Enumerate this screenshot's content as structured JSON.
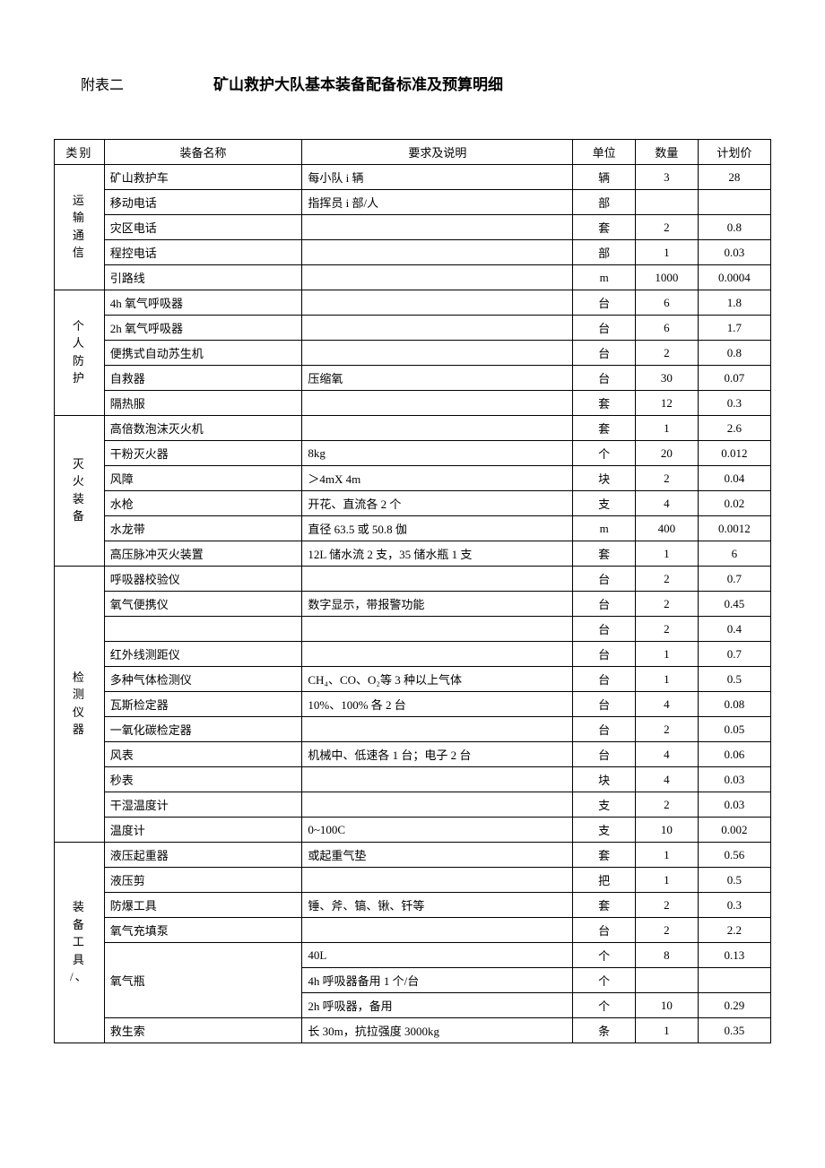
{
  "header": {
    "appendix": "附表二",
    "title": "矿山救护大队基本装备配备标准及预算明细"
  },
  "columns": {
    "category": "类别",
    "name": "装备名称",
    "desc": "要求及说明",
    "unit": "单位",
    "qty": "数量",
    "price": "计划价"
  },
  "categories": [
    {
      "label": "运 输 通 信",
      "rows": [
        {
          "name": "矿山救护车",
          "desc": "每小队 i 辆",
          "unit": "辆",
          "qty": "3",
          "price": "28"
        },
        {
          "name": "移动电话",
          "desc": "指挥员 i 部/人",
          "unit": "部",
          "qty": "",
          "price": ""
        },
        {
          "name": "灾区电话",
          "desc": "",
          "unit": "套",
          "qty": "2",
          "price": "0.8"
        },
        {
          "name": "程控电话",
          "desc": "",
          "unit": "部",
          "qty": "1",
          "price": "0.03"
        },
        {
          "name": "引路线",
          "desc": "",
          "unit": "m",
          "qty": "1000",
          "price": "0.0004"
        }
      ]
    },
    {
      "label": "个 人 防 护",
      "rows": [
        {
          "name": "4h 氧气呼吸器",
          "desc": "",
          "unit": "台",
          "qty": "6",
          "price": "1.8"
        },
        {
          "name": "2h 氧气呼吸器",
          "desc": "",
          "unit": "台",
          "qty": "6",
          "price": "1.7"
        },
        {
          "name": "便携式自动苏生机",
          "desc": "",
          "unit": "台",
          "qty": "2",
          "price": "0.8"
        },
        {
          "name": "自救器",
          "desc": "压缩氧",
          "unit": "台",
          "qty": "30",
          "price": "0.07"
        },
        {
          "name": "隔热服",
          "desc": "",
          "unit": "套",
          "qty": "12",
          "price": "0.3"
        }
      ]
    },
    {
      "label": "灭 火 装 备",
      "rows": [
        {
          "name": "高倍数泡沫灭火机",
          "desc": "",
          "unit": "套",
          "qty": "1",
          "price": "2.6"
        },
        {
          "name": "干粉灭火器",
          "desc": "8kg",
          "unit": "个",
          "qty": "20",
          "price": "0.012"
        },
        {
          "name": "风障",
          "desc": "＞4mX 4m",
          "unit": "块",
          "qty": "2",
          "price": "0.04"
        },
        {
          "name": "水枪",
          "desc": "开花、直流各 2 个",
          "unit": "支",
          "qty": "4",
          "price": "0.02"
        },
        {
          "name": "水龙带",
          "desc": "直径 63.5 或 50.8 伽",
          "unit": "m",
          "qty": "400",
          "price": "0.0012"
        },
        {
          "name": "高压脉冲灭火装置",
          "desc": "12L 储水流 2 支，35 储水瓶 1 支",
          "unit": "套",
          "qty": "1",
          "price": "6"
        }
      ]
    },
    {
      "label": "检 测 仪 器",
      "rows": [
        {
          "name": "呼吸器校验仪",
          "desc": "",
          "unit": "台",
          "qty": "2",
          "price": "0.7"
        },
        {
          "name": "氧气便携仪",
          "desc": "数字显示，带报警功能",
          "unit": "台",
          "qty": "2",
          "price": "0.45"
        },
        {
          "name": "",
          "desc": "",
          "unit": "台",
          "qty": "2",
          "price": "0.4"
        },
        {
          "name": "红外线测距仪",
          "desc": "",
          "unit": "台",
          "qty": "1",
          "price": "0.7"
        },
        {
          "name": "多种气体检测仪",
          "desc": "CH₄、CO、O₂等 3 种以上气体",
          "unit": "台",
          "qty": "1",
          "price": "0.5"
        },
        {
          "name": "瓦斯检定器",
          "desc": "10%、100% 各 2 台",
          "unit": "台",
          "qty": "4",
          "price": "0.08"
        },
        {
          "name": "一氧化碳检定器",
          "desc": "",
          "unit": "台",
          "qty": "2",
          "price": "0.05"
        },
        {
          "name": "风表",
          "desc": "机械中、低速各 1 台；电子 2 台",
          "unit": "台",
          "qty": "4",
          "price": "0.06"
        },
        {
          "name": "秒表",
          "desc": "",
          "unit": "块",
          "qty": "4",
          "price": "0.03"
        },
        {
          "name": "干湿温度计",
          "desc": "",
          "unit": "支",
          "qty": "2",
          "price": "0.03"
        },
        {
          "name": "温度计",
          "desc": "0~100C",
          "unit": "支",
          "qty": "10",
          "price": "0.002"
        }
      ]
    },
    {
      "label": "装 备 工 具 /、",
      "rows": [
        {
          "name": "液压起重器",
          "desc": "或起重气垫",
          "unit": "套",
          "qty": "1",
          "price": "0.56"
        },
        {
          "name": "液压剪",
          "desc": "",
          "unit": "把",
          "qty": "1",
          "price": "0.5"
        },
        {
          "name": "防爆工具",
          "desc": "锤、斧、镐、锹、钎等",
          "unit": "套",
          "qty": "2",
          "price": "0.3"
        },
        {
          "name": "氧气充填泵",
          "desc": "",
          "unit": "台",
          "qty": "2",
          "price": "2.2"
        },
        {
          "name": "氧气瓶",
          "nameRowspan": 3,
          "desc": "40L",
          "unit": "个",
          "qty": "8",
          "price": "0.13"
        },
        {
          "skipName": true,
          "desc": "4h 呼吸器备用 1 个/台",
          "unit": "个",
          "qty": "",
          "price": ""
        },
        {
          "skipName": true,
          "desc": "2h 呼吸器，备用",
          "unit": "个",
          "qty": "10",
          "price": "0.29"
        },
        {
          "name": "救生索",
          "desc": "长 30m，抗拉强度 3000kg",
          "unit": "条",
          "qty": "1",
          "price": "0.35"
        }
      ]
    }
  ]
}
